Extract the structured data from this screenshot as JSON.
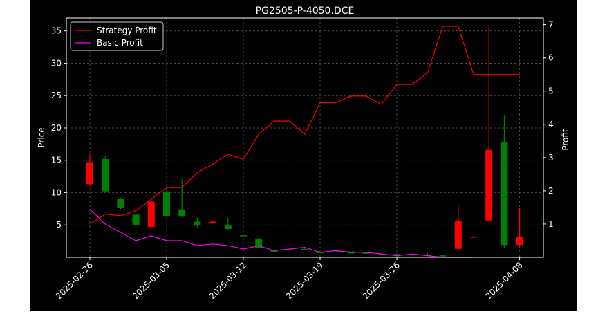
{
  "chart_data": {
    "type": "candlestick",
    "title": "PG2505-P-4050.DCE",
    "ylabel_left": "Price",
    "ylabel_right": "Profit",
    "ylim_left": [
      0,
      37
    ],
    "ylim_right": [
      0,
      7.2
    ],
    "yticks_left": [
      5,
      10,
      15,
      20,
      25,
      30,
      35
    ],
    "yticks_right": [
      1,
      2,
      3,
      4,
      5,
      6,
      7
    ],
    "xticks": [
      "2025-02-26",
      "2025-03-05",
      "2025-03-12",
      "2025-03-19",
      "2025-03-26",
      "2025-04-08"
    ],
    "grid": true,
    "legend_position": "top-left",
    "colors": {
      "background": "#000000",
      "up": "#008000",
      "down": "#ff0000",
      "strategy": "#ff0000",
      "basic": "#ff00ff",
      "text": "#ffffff"
    },
    "candles": [
      {
        "date": "2025-02-26",
        "open": 14.7,
        "close": 11.3,
        "high": 16.0,
        "low": 11.0
      },
      {
        "date": "2025-02-27",
        "open": 10.2,
        "close": 15.2,
        "high": 15.6,
        "low": 10.1
      },
      {
        "date": "2025-02-28",
        "open": 7.6,
        "close": 9.0,
        "high": 9.1,
        "low": 7.4
      },
      {
        "date": "2025-03-03",
        "open": 5.0,
        "close": 6.6,
        "high": 6.7,
        "low": 4.9
      },
      {
        "date": "2025-03-04",
        "open": 8.6,
        "close": 4.7,
        "high": 8.8,
        "low": 4.6
      },
      {
        "date": "2025-03-05",
        "open": 6.4,
        "close": 10.2,
        "high": 10.4,
        "low": 6.3
      },
      {
        "date": "2025-03-06",
        "open": 6.3,
        "close": 7.4,
        "high": 12.1,
        "low": 6.2
      },
      {
        "date": "2025-03-07",
        "open": 4.9,
        "close": 5.5,
        "high": 6.2,
        "low": 4.5
      },
      {
        "date": "2025-03-10",
        "open": 5.5,
        "close": 5.3,
        "high": 5.7,
        "low": 5.2
      },
      {
        "date": "2025-03-11",
        "open": 4.4,
        "close": 4.9,
        "high": 6.1,
        "low": 4.3
      },
      {
        "date": "2025-03-12",
        "open": 3.4,
        "close": 3.4,
        "high": 3.5,
        "low": 3.4
      },
      {
        "date": "2025-03-13",
        "open": 1.4,
        "close": 2.9,
        "high": 3.0,
        "low": 1.3
      },
      {
        "date": "2025-03-14",
        "open": 0.8,
        "close": 1.1,
        "high": 1.2,
        "low": 0.8
      },
      {
        "date": "2025-03-17",
        "open": 1.2,
        "close": 1.2,
        "high": 1.3,
        "low": 1.1
      },
      {
        "date": "2025-03-18",
        "open": 1.3,
        "close": 1.3,
        "high": 1.5,
        "low": 1.3
      },
      {
        "date": "2025-03-19",
        "open": 0.8,
        "close": 0.8,
        "high": 0.9,
        "low": 0.7
      },
      {
        "date": "2025-03-20",
        "open": 0.9,
        "close": 1.1,
        "high": 1.2,
        "low": 0.9
      },
      {
        "date": "2025-03-21",
        "open": 0.6,
        "close": 0.9,
        "high": 0.9,
        "low": 0.6
      },
      {
        "date": "2025-03-24",
        "open": 0.7,
        "close": 0.7,
        "high": 0.8,
        "low": 0.6
      },
      {
        "date": "2025-03-25",
        "open": 0.5,
        "close": 0.5,
        "high": 0.6,
        "low": 0.4
      },
      {
        "date": "2025-03-26",
        "open": 0.5,
        "close": 0.5,
        "high": 0.6,
        "low": 0.4
      },
      {
        "date": "2025-03-27",
        "open": 0.4,
        "close": 0.5,
        "high": 0.5,
        "low": 0.4
      },
      {
        "date": "2025-03-28",
        "open": 0.4,
        "close": 0.4,
        "high": 0.7,
        "low": 0.3
      },
      {
        "date": "2025-03-31",
        "open": 0.3,
        "close": 0.3,
        "high": 0.4,
        "low": 0.3
      },
      {
        "date": "2025-04-01",
        "open": 5.6,
        "close": 1.3,
        "high": 8.0,
        "low": 1.2
      },
      {
        "date": "2025-04-02",
        "open": 3.2,
        "close": 3.1,
        "high": 3.3,
        "low": 3.0
      },
      {
        "date": "2025-04-03",
        "open": 16.6,
        "close": 5.7,
        "high": 35.8,
        "low": 5.6
      },
      {
        "date": "2025-04-07",
        "open": 1.9,
        "close": 17.8,
        "high": 22.0,
        "low": 1.4
      },
      {
        "date": "2025-04-08",
        "open": 3.2,
        "close": 1.9,
        "high": 7.6,
        "low": 1.8
      }
    ],
    "series": [
      {
        "name": "Strategy Profit",
        "axis": "right",
        "values": [
          1.0,
          1.3,
          1.25,
          1.4,
          1.75,
          2.1,
          2.1,
          2.55,
          2.8,
          3.1,
          2.95,
          3.7,
          4.1,
          4.1,
          3.7,
          4.65,
          4.65,
          4.85,
          4.85,
          4.6,
          5.2,
          5.2,
          5.55,
          6.95,
          6.95,
          5.5,
          5.5,
          5.5,
          5.5
        ]
      },
      {
        "name": "Basic Profit",
        "axis": "right",
        "values": [
          1.45,
          1.0,
          0.75,
          0.5,
          0.65,
          0.5,
          0.5,
          0.35,
          0.4,
          0.35,
          0.25,
          0.35,
          0.2,
          0.25,
          0.3,
          0.15,
          0.2,
          0.15,
          0.15,
          0.1,
          0.05,
          0.1,
          0.05,
          0.0,
          0.0,
          0.0,
          null,
          null,
          null
        ]
      }
    ]
  }
}
